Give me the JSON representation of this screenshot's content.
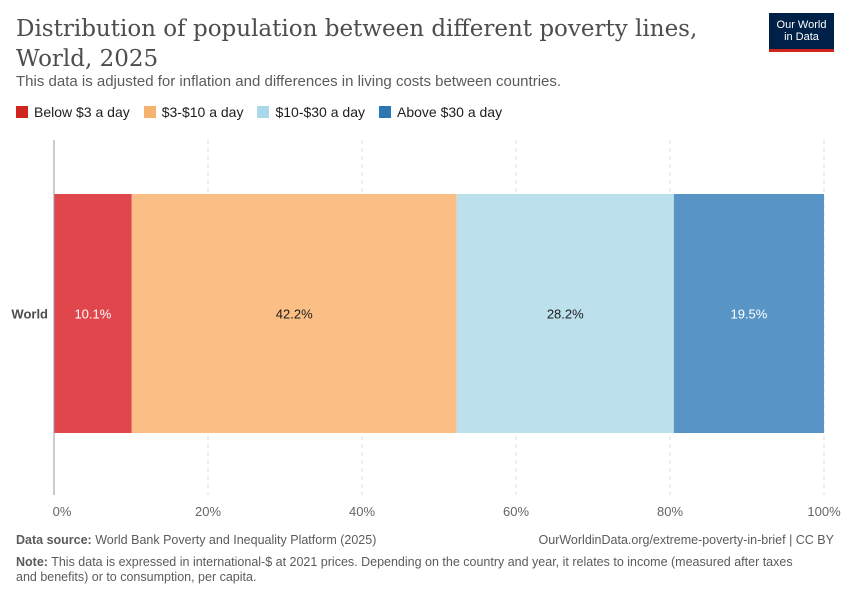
{
  "header": {
    "title": "Distribution of population between different poverty lines, World, 2025",
    "subtitle": "This data is adjusted for inflation and differences in living costs between countries.",
    "logo_line1": "Our World",
    "logo_line2": "in Data"
  },
  "chart_data": {
    "type": "bar",
    "orientation": "horizontal",
    "stacked": true,
    "categories": [
      "World"
    ],
    "series": [
      {
        "name": "Below $3 a day",
        "values": [
          10.1
        ],
        "label": "10.1%",
        "color": "#e0474c",
        "label_color": "#ffffff"
      },
      {
        "name": "$3-$10 a day",
        "values": [
          42.2
        ],
        "label": "42.2%",
        "color": "#fbbf85",
        "label_color": "#1d1d1d"
      },
      {
        "name": "$10-$30 a day",
        "values": [
          28.2
        ],
        "label": "28.2%",
        "color": "#bce0ec",
        "label_color": "#1d1d1d"
      },
      {
        "name": "Above $30 a day",
        "values": [
          19.5
        ],
        "label": "19.5%",
        "color": "#5894c6",
        "label_color": "#ffffff"
      }
    ],
    "xlim": [
      0,
      100
    ],
    "x_ticks": [
      "0%",
      "20%",
      "40%",
      "60%",
      "80%",
      "100%"
    ],
    "legend_colors": [
      "#ce261e",
      "#f7b26f",
      "#a8d8ea",
      "#2c77b2"
    ],
    "grid": true,
    "legend_position": "top-left"
  },
  "footer": {
    "source_label": "Data source:",
    "source_text": "World Bank Poverty and Inequality Platform (2025)",
    "url": "OurWorldinData.org/extreme-poverty-in-brief | CC BY",
    "note_label": "Note:",
    "note_text": "This data is expressed in international-$ at 2021 prices. Depending on the country and year, it relates to income (measured after taxes and benefits) or to consumption, per capita."
  }
}
